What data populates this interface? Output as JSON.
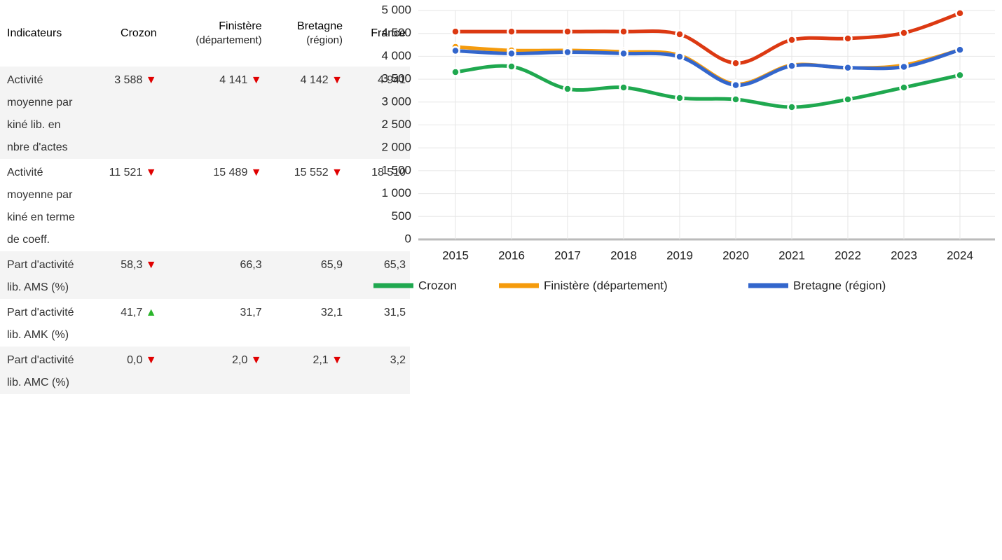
{
  "table": {
    "header": [
      "Indicateurs",
      "Crozon",
      [
        "Finistère",
        "(département)"
      ],
      [
        "Bretagne",
        "(région)"
      ],
      "France"
    ],
    "rows": [
      {
        "label": "Activité moyenne par kiné lib. en nbre d'actes",
        "cells": [
          {
            "text": "3 588",
            "trend": "down"
          },
          {
            "text": "4 141",
            "trend": "down"
          },
          {
            "text": "4 142",
            "trend": "down"
          },
          {
            "text": "4 941"
          }
        ]
      },
      {
        "label": "Activité moyenne par kiné en terme de coeff.",
        "cells": [
          {
            "text": "11 521",
            "trend": "down"
          },
          {
            "text": "15 489",
            "trend": "down"
          },
          {
            "text": "15 552",
            "trend": "down"
          },
          {
            "text": "18 510"
          }
        ]
      },
      {
        "label": "Part d'activité lib. AMS (%)",
        "cells": [
          {
            "text": "58,3",
            "trend": "down"
          },
          {
            "text": "66,3"
          },
          {
            "text": "65,9"
          },
          {
            "text": "65,3"
          }
        ]
      },
      {
        "label": "Part d'activité lib. AMK (%)",
        "cells": [
          {
            "text": "41,7",
            "trend": "up"
          },
          {
            "text": "31,7"
          },
          {
            "text": "32,1"
          },
          {
            "text": "31,5"
          }
        ]
      },
      {
        "label": "Part d'activité lib. AMC (%)",
        "cells": [
          {
            "text": "0,0",
            "trend": "down"
          },
          {
            "text": "2,0",
            "trend": "down"
          },
          {
            "text": "2,1",
            "trend": "down"
          },
          {
            "text": "3,2"
          }
        ]
      }
    ]
  },
  "chart_data": {
    "type": "line",
    "categories": [
      "2015",
      "2016",
      "2017",
      "2018",
      "2019",
      "2020",
      "2021",
      "2022",
      "2023",
      "2024"
    ],
    "series": [
      {
        "name": "Crozon",
        "color": "#1fa84f",
        "values": [
          3654,
          3777,
          3287,
          3318,
          3089,
          3058,
          2890,
          3058,
          3318,
          3588
        ]
      },
      {
        "name": "Finistère (département)",
        "color": "#f59b0c",
        "values": [
          4205,
          4128,
          4128,
          4098,
          4021,
          3394,
          3807,
          3746,
          3807,
          4141
        ]
      },
      {
        "name": "Bretagne (région)",
        "color": "#3366cc",
        "values": [
          4120,
          4060,
          4090,
          4060,
          3990,
          3370,
          3790,
          3750,
          3770,
          4142
        ]
      },
      {
        "color": "#dc3912",
        "values": [
          4540,
          4540,
          4540,
          4540,
          4480,
          3850,
          4358,
          4388,
          4510,
          4941
        ]
      }
    ],
    "ylim": [
      0,
      5000
    ],
    "yticks": [
      0,
      500,
      {
        "value": 1000,
        "label": "1 000"
      },
      {
        "value": 1500,
        "label": "1 500"
      },
      {
        "value": 2000,
        "label": "2 000"
      },
      {
        "value": 2500,
        "label": "2 500"
      },
      {
        "value": 3000,
        "label": "3 000"
      },
      {
        "value": 3500,
        "label": "3 500"
      },
      {
        "value": 4000,
        "label": "4 000"
      },
      {
        "value": 4500,
        "label": "4 500"
      },
      {
        "value": 5000,
        "label": "5 000"
      }
    ],
    "grid": true,
    "legend": "bottom"
  }
}
